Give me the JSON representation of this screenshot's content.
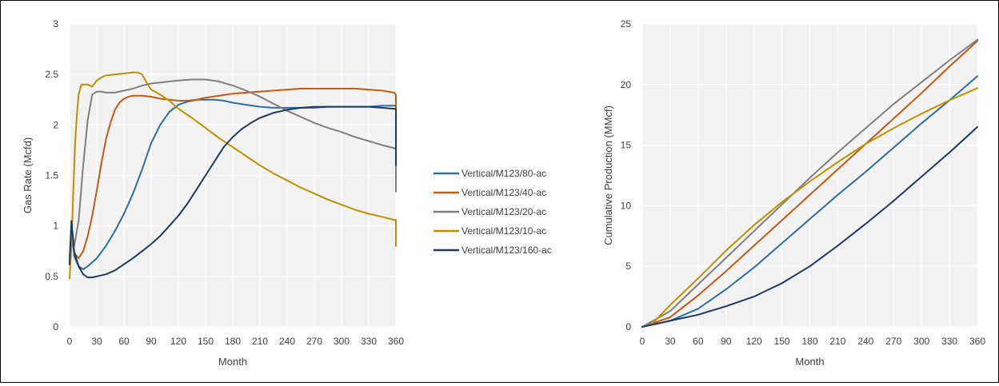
{
  "chart_data": [
    {
      "type": "line",
      "xlabel": "Month",
      "ylabel": "Gas Rate (Mcfd)",
      "xlim": [
        0,
        360
      ],
      "ylim": [
        0,
        3
      ],
      "xticks": [
        0,
        30,
        60,
        90,
        120,
        150,
        180,
        210,
        240,
        270,
        300,
        330,
        360
      ],
      "yticks": [
        0,
        0.5,
        1,
        1.5,
        2,
        2.5,
        3
      ],
      "ytick_labels": [
        "0",
        "0.5",
        "1",
        "1.5",
        "2",
        "2.5",
        "3"
      ],
      "grid": true,
      "legend_position": "right",
      "series": [
        {
          "name": "Vertical/M123/80-ac",
          "color": "#2E6DA4",
          "x": [
            0,
            2,
            5,
            10,
            15,
            20,
            30,
            40,
            50,
            60,
            70,
            80,
            90,
            100,
            110,
            120,
            130,
            140,
            150,
            160,
            170,
            180,
            195,
            210,
            225,
            240,
            255,
            270,
            285,
            300,
            315,
            330,
            345,
            358,
            360,
            360
          ],
          "y": [
            0.62,
            1.0,
            0.7,
            0.6,
            0.57,
            0.6,
            0.68,
            0.8,
            0.95,
            1.12,
            1.32,
            1.56,
            1.82,
            2.0,
            2.13,
            2.2,
            2.23,
            2.25,
            2.25,
            2.25,
            2.24,
            2.22,
            2.2,
            2.18,
            2.17,
            2.17,
            2.17,
            2.17,
            2.18,
            2.18,
            2.18,
            2.18,
            2.19,
            2.19,
            2.19,
            1.6
          ]
        },
        {
          "name": "Vertical/M123/40-ac",
          "color": "#C55A11",
          "x": [
            0,
            2,
            5,
            10,
            15,
            20,
            25,
            30,
            35,
            40,
            45,
            50,
            55,
            60,
            65,
            70,
            75,
            80,
            90,
            100,
            110,
            120,
            130,
            140,
            150,
            165,
            180,
            195,
            210,
            225,
            240,
            255,
            270,
            285,
            300,
            315,
            330,
            345,
            358,
            360,
            360
          ],
          "y": [
            0.62,
            1.0,
            0.73,
            0.68,
            0.75,
            0.9,
            1.1,
            1.35,
            1.62,
            1.85,
            2.02,
            2.15,
            2.22,
            2.26,
            2.28,
            2.29,
            2.29,
            2.29,
            2.28,
            2.26,
            2.25,
            2.24,
            2.24,
            2.25,
            2.27,
            2.29,
            2.31,
            2.32,
            2.33,
            2.34,
            2.35,
            2.36,
            2.36,
            2.36,
            2.36,
            2.36,
            2.35,
            2.34,
            2.32,
            2.3,
            1.65
          ]
        },
        {
          "name": "Vertical/M123/20-ac",
          "color": "#7F7F7F",
          "x": [
            0,
            2,
            5,
            10,
            15,
            20,
            25,
            30,
            35,
            40,
            50,
            60,
            70,
            80,
            90,
            100,
            110,
            120,
            135,
            150,
            165,
            180,
            195,
            210,
            225,
            240,
            255,
            270,
            285,
            300,
            315,
            330,
            345,
            358,
            360,
            360
          ],
          "y": [
            0.7,
            1.0,
            0.8,
            1.05,
            1.6,
            2.05,
            2.3,
            2.33,
            2.33,
            2.32,
            2.32,
            2.34,
            2.36,
            2.39,
            2.41,
            2.42,
            2.43,
            2.44,
            2.45,
            2.45,
            2.43,
            2.39,
            2.34,
            2.28,
            2.21,
            2.14,
            2.08,
            2.02,
            1.97,
            1.93,
            1.88,
            1.84,
            1.8,
            1.77,
            1.76,
            1.34
          ]
        },
        {
          "name": "Vertical/M123/10-ac",
          "color": "#BF9000",
          "x": [
            0,
            2,
            4,
            6,
            8,
            10,
            13,
            16,
            20,
            25,
            30,
            35,
            40,
            50,
            60,
            70,
            75,
            80,
            85,
            90,
            100,
            110,
            120,
            135,
            150,
            165,
            180,
            195,
            210,
            225,
            240,
            255,
            270,
            285,
            300,
            315,
            330,
            345,
            358,
            360,
            360
          ],
          "y": [
            0.48,
            0.8,
            1.3,
            1.8,
            2.1,
            2.3,
            2.4,
            2.4,
            2.4,
            2.38,
            2.44,
            2.47,
            2.49,
            2.5,
            2.51,
            2.52,
            2.52,
            2.5,
            2.42,
            2.35,
            2.3,
            2.24,
            2.16,
            2.07,
            1.97,
            1.87,
            1.78,
            1.69,
            1.6,
            1.52,
            1.45,
            1.38,
            1.32,
            1.26,
            1.21,
            1.16,
            1.12,
            1.09,
            1.06,
            1.06,
            0.8
          ]
        },
        {
          "name": "Vertical/M123/160-ac",
          "color": "#203864",
          "x": [
            0,
            2,
            5,
            10,
            15,
            20,
            25,
            30,
            40,
            50,
            60,
            70,
            80,
            90,
            100,
            110,
            120,
            130,
            140,
            150,
            160,
            170,
            180,
            190,
            200,
            210,
            225,
            240,
            255,
            270,
            285,
            300,
            315,
            330,
            345,
            358,
            360,
            360
          ],
          "y": [
            0.62,
            1.05,
            0.75,
            0.6,
            0.52,
            0.49,
            0.49,
            0.5,
            0.52,
            0.56,
            0.62,
            0.68,
            0.75,
            0.82,
            0.9,
            1.0,
            1.1,
            1.22,
            1.36,
            1.5,
            1.64,
            1.78,
            1.88,
            1.96,
            2.02,
            2.07,
            2.12,
            2.15,
            2.17,
            2.18,
            2.18,
            2.18,
            2.18,
            2.18,
            2.17,
            2.16,
            2.16,
            1.6
          ]
        }
      ]
    },
    {
      "type": "line",
      "xlabel": "Month",
      "ylabel": "Cumulative Production (MMcf)",
      "xlim": [
        0,
        360
      ],
      "ylim": [
        0,
        25
      ],
      "xticks": [
        0,
        30,
        60,
        90,
        120,
        150,
        180,
        210,
        240,
        270,
        300,
        330,
        360
      ],
      "yticks": [
        0,
        5,
        10,
        15,
        20,
        25
      ],
      "ytick_labels": [
        "0",
        "5",
        "10",
        "15",
        "20",
        "25"
      ],
      "grid": true,
      "series": [
        {
          "name": "Vertical/M123/80-ac",
          "color": "#2E6DA4",
          "x": [
            0,
            30,
            60,
            90,
            120,
            150,
            180,
            210,
            240,
            270,
            300,
            330,
            360
          ],
          "y": [
            0,
            0.5,
            1.5,
            3.1,
            4.9,
            6.9,
            8.9,
            10.9,
            12.8,
            14.8,
            16.8,
            18.7,
            20.7
          ]
        },
        {
          "name": "Vertical/M123/40-ac",
          "color": "#C55A11",
          "x": [
            0,
            30,
            60,
            90,
            120,
            150,
            180,
            210,
            240,
            270,
            300,
            330,
            360
          ],
          "y": [
            0,
            0.8,
            2.6,
            4.6,
            6.7,
            8.8,
            10.9,
            13.0,
            15.1,
            17.2,
            19.3,
            21.5,
            23.6
          ]
        },
        {
          "name": "Vertical/M123/20-ac",
          "color": "#7F7F7F",
          "x": [
            0,
            30,
            60,
            90,
            120,
            150,
            180,
            210,
            240,
            270,
            300,
            330,
            360
          ],
          "y": [
            0,
            1.3,
            3.5,
            5.7,
            7.9,
            10.1,
            12.3,
            14.4,
            16.4,
            18.4,
            20.2,
            22.0,
            23.7
          ]
        },
        {
          "name": "Vertical/M123/10-ac",
          "color": "#BF9000",
          "x": [
            0,
            10,
            30,
            60,
            90,
            120,
            150,
            180,
            210,
            240,
            270,
            300,
            330,
            360
          ],
          "y": [
            0,
            0.2,
            1.8,
            4.0,
            6.3,
            8.4,
            10.3,
            12.0,
            13.6,
            15.1,
            16.4,
            17.6,
            18.7,
            19.7
          ]
        },
        {
          "name": "Vertical/M123/160-ac",
          "color": "#203864",
          "x": [
            0,
            30,
            60,
            90,
            120,
            150,
            180,
            210,
            240,
            270,
            300,
            330,
            360
          ],
          "y": [
            0,
            0.5,
            1.0,
            1.7,
            2.5,
            3.6,
            5.0,
            6.7,
            8.5,
            10.4,
            12.4,
            14.4,
            16.5
          ]
        }
      ]
    }
  ]
}
